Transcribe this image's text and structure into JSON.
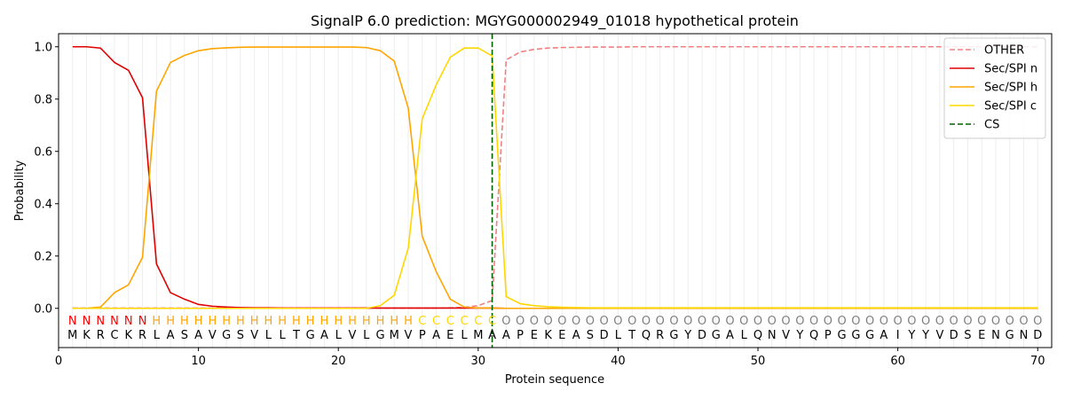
{
  "chart_data": {
    "type": "line",
    "title": "SignalP 6.0 prediction: MGYG000002949_01018 hypothetical protein",
    "xlabel": "Protein sequence",
    "ylabel": "Probability",
    "xlim": [
      0,
      71
    ],
    "ylim": [
      -0.15,
      1.05
    ],
    "xticks": [
      0,
      10,
      20,
      30,
      40,
      50,
      60,
      70
    ],
    "yticks": [
      0.0,
      0.2,
      0.4,
      0.6,
      0.8,
      1.0
    ],
    "ytick_labels": [
      "0.0",
      "0.2",
      "0.4",
      "0.6",
      "0.8",
      "1.0"
    ],
    "legend_position": "top-right",
    "cleavage_site": 31,
    "sequence": [
      "M",
      "K",
      "R",
      "C",
      "K",
      "R",
      "L",
      "A",
      "S",
      "A",
      "V",
      "G",
      "S",
      "V",
      "L",
      "L",
      "T",
      "G",
      "A",
      "L",
      "V",
      "L",
      "G",
      "M",
      "V",
      "P",
      "A",
      "E",
      "L",
      "M",
      "A",
      "A",
      "P",
      "E",
      "K",
      "E",
      "A",
      "S",
      "D",
      "L",
      "T",
      "Q",
      "R",
      "G",
      "Y",
      "D",
      "G",
      "A",
      "L",
      "Q",
      "N",
      "V",
      "Y",
      "Q",
      "P",
      "G",
      "G",
      "G",
      "A",
      "I",
      "Y",
      "Y",
      "V",
      "D",
      "S",
      "E",
      "N",
      "G",
      "N",
      "D"
    ],
    "region_labels": [
      "N",
      "N",
      "N",
      "N",
      "N",
      "N",
      "H",
      "H",
      "H",
      "H",
      "H",
      "H",
      "H",
      "H",
      "H",
      "H",
      "H",
      "H",
      "H",
      "H",
      "H",
      "H",
      "H",
      "H",
      "H",
      "C",
      "C",
      "C",
      "C",
      "C",
      "C",
      "O",
      "O",
      "O",
      "O",
      "O",
      "O",
      "O",
      "O",
      "O",
      "O",
      "O",
      "O",
      "O",
      "O",
      "O",
      "O",
      "O",
      "O",
      "O",
      "O",
      "O",
      "O",
      "O",
      "O",
      "O",
      "O",
      "O",
      "O",
      "O",
      "O",
      "O",
      "O",
      "O",
      "O",
      "O",
      "O",
      "O",
      "O",
      "O"
    ],
    "region_colors": {
      "N": "#ff0000",
      "H": "#ffa500",
      "C": "#ffd700",
      "O": "#808080"
    },
    "series": [
      {
        "name": "OTHER",
        "color": "#f08080",
        "dash": "dashed",
        "values": [
          0.001,
          0.001,
          0.001,
          0.001,
          0.001,
          0.001,
          0.001,
          0.001,
          0.001,
          0.001,
          0.001,
          0.001,
          0.001,
          0.001,
          0.001,
          0.001,
          0.001,
          0.001,
          0.001,
          0.001,
          0.001,
          0.001,
          0.001,
          0.001,
          0.001,
          0.001,
          0.001,
          0.002,
          0.004,
          0.01,
          0.03,
          0.95,
          0.98,
          0.99,
          0.995,
          0.997,
          0.998,
          0.999,
          0.999,
          0.999,
          1.0,
          1.0,
          1.0,
          1.0,
          1.0,
          1.0,
          1.0,
          1.0,
          1.0,
          1.0,
          1.0,
          1.0,
          1.0,
          1.0,
          1.0,
          1.0,
          1.0,
          1.0,
          1.0,
          1.0,
          1.0,
          1.0,
          1.0,
          1.0,
          1.0,
          1.0,
          1.0,
          1.0,
          1.0,
          1.0
        ]
      },
      {
        "name": "Sec/SPI n",
        "color": "#e00000",
        "dash": "solid",
        "values": [
          1.0,
          1.0,
          0.995,
          0.94,
          0.91,
          0.805,
          0.17,
          0.06,
          0.035,
          0.015,
          0.008,
          0.005,
          0.003,
          0.002,
          0.002,
          0.001,
          0.001,
          0.001,
          0.001,
          0.001,
          0.001,
          0.001,
          0.001,
          0.001,
          0.001,
          0.001,
          0.001,
          0.001,
          0.001,
          0.001,
          0.001,
          0.0,
          0.0,
          0.0,
          0.0,
          0.0,
          0.0,
          0.0,
          0.0,
          0.0,
          0.0,
          0.0,
          0.0,
          0.0,
          0.0,
          0.0,
          0.0,
          0.0,
          0.0,
          0.0,
          0.0,
          0.0,
          0.0,
          0.0,
          0.0,
          0.0,
          0.0,
          0.0,
          0.0,
          0.0,
          0.0,
          0.0,
          0.0,
          0.0,
          0.0,
          0.0,
          0.0,
          0.0,
          0.0,
          0.0
        ]
      },
      {
        "name": "Sec/SPI h",
        "color": "#ffa500",
        "dash": "solid",
        "values": [
          0.0,
          0.0,
          0.005,
          0.06,
          0.09,
          0.195,
          0.83,
          0.94,
          0.967,
          0.985,
          0.993,
          0.996,
          0.998,
          0.999,
          0.999,
          0.999,
          0.999,
          0.999,
          0.999,
          0.999,
          0.999,
          0.997,
          0.985,
          0.945,
          0.765,
          0.275,
          0.14,
          0.035,
          0.005,
          0.001,
          0.001,
          0.0,
          0.0,
          0.0,
          0.0,
          0.0,
          0.0,
          0.0,
          0.0,
          0.0,
          0.0,
          0.0,
          0.0,
          0.0,
          0.0,
          0.0,
          0.0,
          0.0,
          0.0,
          0.0,
          0.0,
          0.0,
          0.0,
          0.0,
          0.0,
          0.0,
          0.0,
          0.0,
          0.0,
          0.0,
          0.0,
          0.0,
          0.0,
          0.0,
          0.0,
          0.0,
          0.0,
          0.0,
          0.0,
          0.0
        ]
      },
      {
        "name": "Sec/SPI c",
        "color": "#ffd700",
        "dash": "solid",
        "values": [
          0.0,
          0.0,
          0.0,
          0.0,
          0.0,
          0.0,
          0.0,
          0.0,
          0.0,
          0.0,
          0.0,
          0.0,
          0.0,
          0.0,
          0.0,
          0.0,
          0.0,
          0.0,
          0.0,
          0.0,
          0.0,
          0.0,
          0.01,
          0.05,
          0.23,
          0.725,
          0.855,
          0.96,
          0.995,
          0.995,
          0.965,
          0.045,
          0.018,
          0.01,
          0.006,
          0.004,
          0.003,
          0.002,
          0.002,
          0.002,
          0.002,
          0.002,
          0.002,
          0.002,
          0.002,
          0.002,
          0.002,
          0.002,
          0.002,
          0.002,
          0.002,
          0.002,
          0.002,
          0.002,
          0.002,
          0.002,
          0.002,
          0.002,
          0.002,
          0.002,
          0.002,
          0.002,
          0.002,
          0.002,
          0.002,
          0.002,
          0.002,
          0.002,
          0.002,
          0.002
        ]
      },
      {
        "name": "CS",
        "color": "#006400",
        "dash": "dashed",
        "x": 31
      }
    ]
  }
}
